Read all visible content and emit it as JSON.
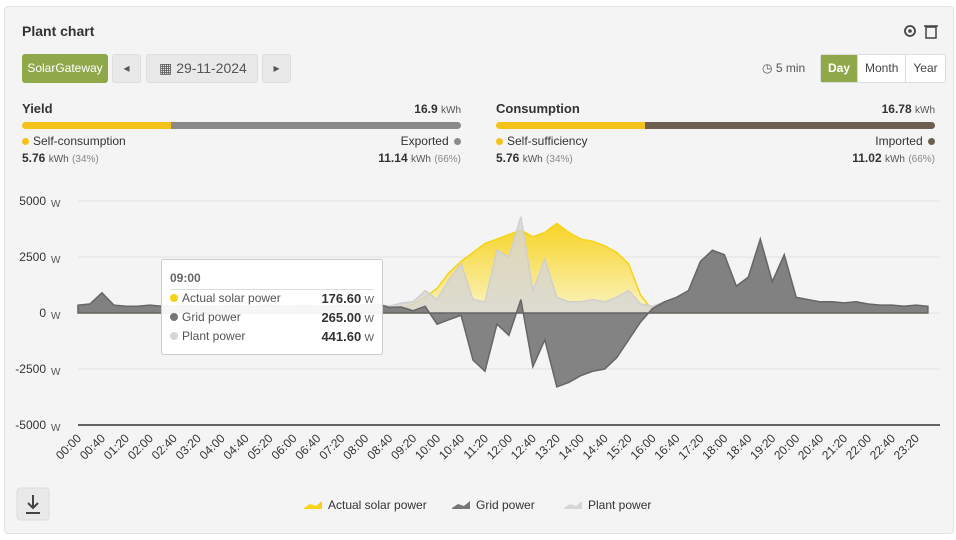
{
  "header": {
    "title": "Plant chart",
    "gateway": "SolarGateway",
    "date": "29-11-2024",
    "interval": "5 min",
    "periods": [
      "Day",
      "Month",
      "Year"
    ],
    "active_period": "Day"
  },
  "summary": {
    "yield": {
      "title": "Yield",
      "total": 16.9,
      "unit": "kWh",
      "left": {
        "name": "Self-consumption",
        "value": 5.76,
        "unit": "kWh",
        "percent": 34,
        "percent_label": "(34%)"
      },
      "right": {
        "name": "Exported",
        "value": 11.14,
        "unit": "kWh",
        "percent": 66,
        "percent_label": "(66%)"
      }
    },
    "consumption": {
      "title": "Consumption",
      "total": 16.78,
      "unit": "kWh",
      "left": {
        "name": "Self-sufficiency",
        "value": 5.76,
        "unit": "kWh",
        "percent": 34,
        "percent_label": "(34%)"
      },
      "right": {
        "name": "Imported",
        "value": 11.02,
        "unit": "kWh",
        "percent": 66,
        "percent_label": "(66%)"
      }
    }
  },
  "chart_data": {
    "type": "area",
    "y_unit": "W",
    "categories": [
      "00:00",
      null,
      "00:40",
      null,
      "01:20",
      null,
      "02:00",
      null,
      "02:40",
      null,
      "03:20",
      null,
      "04:00",
      null,
      "04:40",
      null,
      "05:20",
      null,
      "06:00",
      null,
      "06:40",
      null,
      "07:20",
      null,
      "08:00",
      null,
      "08:40",
      null,
      "09:20",
      null,
      "10:00",
      null,
      "10:40",
      null,
      "11:20",
      null,
      "12:00",
      null,
      "12:40",
      null,
      "13:20",
      null,
      "14:00",
      null,
      "14:40",
      null,
      "15:20",
      null,
      "16:00",
      null,
      "16:40",
      null,
      "17:20",
      null,
      "18:00",
      null,
      "18:40",
      null,
      "19:20",
      null,
      "20:00",
      null,
      "20:40",
      null,
      "21:20",
      null,
      "22:00",
      null,
      "22:40",
      null,
      "23:20",
      null
    ],
    "series": [
      {
        "name": "Actual solar power",
        "color": "#f5d316",
        "values": [
          0,
          0,
          0,
          0,
          0,
          0,
          0,
          0,
          0,
          0,
          0,
          0,
          0,
          0,
          0,
          0,
          0,
          0,
          0,
          0,
          0,
          0,
          0,
          0,
          0,
          0,
          50,
          176.6,
          400,
          700,
          1100,
          1800,
          2300,
          2700,
          3100,
          3300,
          3500,
          3700,
          3400,
          3600,
          4000,
          3600,
          3300,
          3200,
          3000,
          2700,
          2200,
          800,
          100,
          0,
          0,
          0,
          0,
          0,
          0,
          0,
          0,
          0,
          0,
          0,
          0,
          0,
          0,
          0,
          0,
          0,
          0,
          0,
          0,
          0,
          0,
          0
        ]
      },
      {
        "name": "Grid power",
        "color": "#777777",
        "values": [
          350,
          400,
          900,
          350,
          300,
          300,
          350,
          300,
          300,
          350,
          300,
          300,
          300,
          350,
          300,
          300,
          350,
          300,
          300,
          350,
          300,
          300,
          350,
          300,
          350,
          400,
          250,
          265,
          100,
          300,
          -500,
          -300,
          -100,
          -2100,
          -2600,
          -500,
          -1000,
          600,
          -2400,
          -1200,
          -3300,
          -3100,
          -2800,
          -2600,
          -2500,
          -2000,
          -1200,
          -400,
          200,
          500,
          700,
          1000,
          2300,
          2800,
          2600,
          1200,
          1600,
          3300,
          1400,
          2600,
          700,
          600,
          500,
          500,
          450,
          500,
          400,
          350,
          350,
          300,
          350,
          300
        ]
      },
      {
        "name": "Plant power",
        "color": "#d6d6d6",
        "values": [
          350,
          400,
          900,
          350,
          300,
          300,
          350,
          300,
          300,
          350,
          300,
          300,
          300,
          350,
          300,
          300,
          350,
          300,
          300,
          350,
          300,
          300,
          350,
          300,
          350,
          400,
          300,
          441.6,
          500,
          1000,
          600,
          1500,
          2200,
          600,
          500,
          2800,
          2500,
          4300,
          1000,
          2400,
          700,
          500,
          500,
          600,
          500,
          700,
          1000,
          400,
          300,
          500,
          700,
          1000,
          2300,
          2800,
          2600,
          1200,
          1600,
          3300,
          1400,
          2600,
          700,
          600,
          500,
          500,
          450,
          500,
          400,
          350,
          350,
          300,
          350,
          300
        ]
      }
    ],
    "ylim": [
      -5000,
      5000
    ],
    "yticks": [
      5000,
      2500,
      0,
      -2500,
      -5000
    ],
    "grid": true,
    "tooltip": {
      "x": "09:00",
      "index": 27,
      "value_labels": [
        "176.60",
        "265.00",
        "441.60"
      ]
    }
  }
}
